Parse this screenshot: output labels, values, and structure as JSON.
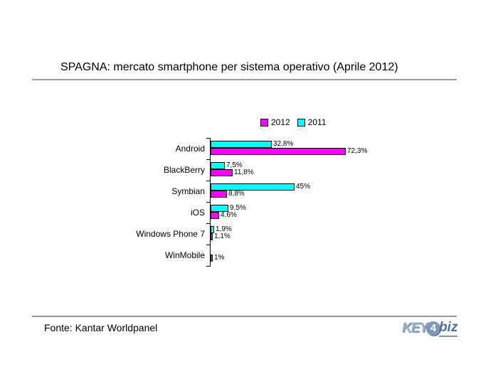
{
  "title": "SPAGNA: mercato smartphone per sistema operativo (Aprile 2012)",
  "footer": {
    "source": "Fonte: Kantar Worldpanel"
  },
  "logo": {
    "key": "KEY",
    "four": "4",
    "biz": "biz"
  },
  "colors": {
    "bar_2012": "#FF00FF",
    "bar_2011": "#00FFFF",
    "bar_border": "#000000",
    "divider": "#9A9A9A",
    "background": "#FFFFFF"
  },
  "legend": [
    {
      "label": "2012",
      "color": "#FF00FF"
    },
    {
      "label": "2011",
      "color": "#00FFFF"
    }
  ],
  "chart_data": {
    "type": "bar",
    "orientation": "horizontal",
    "title": "SPAGNA: mercato smartphone per sistema operativo (Aprile 2012)",
    "categories": [
      "Android",
      "BlackBerry",
      "Symbian",
      "iOS",
      "Windows Phone 7",
      "WinMobile"
    ],
    "series": [
      {
        "name": "2012",
        "color": "#FF00FF",
        "values": [
          72.3,
          11.8,
          8.8,
          4.6,
          1.1,
          1.0
        ],
        "labels": [
          "72,3%",
          "11,8%",
          "8,8%",
          "4,6%",
          "1,1%",
          "1%"
        ]
      },
      {
        "name": "2011",
        "color": "#00FFFF",
        "values": [
          32.8,
          7.5,
          45,
          9.5,
          1.9,
          null
        ],
        "labels": [
          "32,8%",
          "7,5%",
          "45%",
          "9,5%",
          "1,9%",
          ""
        ]
      }
    ],
    "value_unit": "%",
    "xlim": [
      0,
      76
    ],
    "grid": false,
    "legend_position": "top",
    "bar_order_top_to_bottom": [
      "2011",
      "2012"
    ],
    "data_labels": true
  }
}
